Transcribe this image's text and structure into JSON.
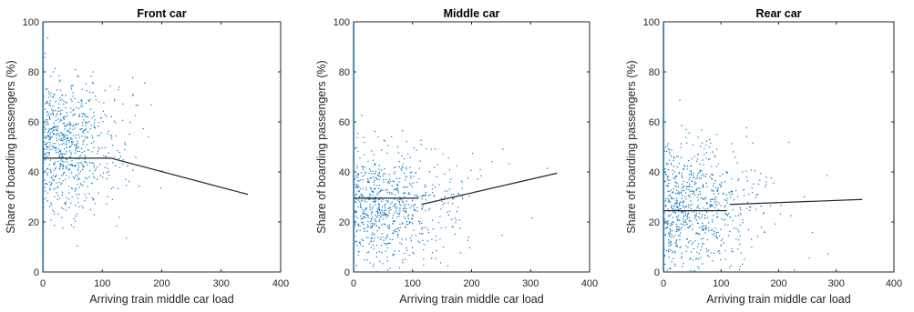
{
  "chart_data": [
    {
      "type": "scatter",
      "title": "Front car",
      "xlabel": "Arriving train middle car load",
      "ylabel": "Share of boarding passengers (%)",
      "xlim": [
        0,
        400
      ],
      "ylim": [
        0,
        100
      ],
      "xticks": [
        "0",
        "100",
        "200",
        "300",
        "400"
      ],
      "yticks": [
        "0",
        "20",
        "40",
        "60",
        "80",
        "100"
      ],
      "grid": false,
      "point_color": "#0072bd",
      "point_cloud": {
        "n": 750,
        "mean_y": 50,
        "sd_y": 14,
        "x_mode": 45,
        "x_max": 345
      },
      "fit_segments": [
        {
          "x": [
            0,
            115
          ],
          "y": [
            45.5,
            45.5
          ]
        },
        {
          "x": [
            115,
            345
          ],
          "y": [
            45.5,
            31
          ]
        }
      ]
    },
    {
      "type": "scatter",
      "title": "Middle car",
      "xlabel": "Arriving train middle car load",
      "ylabel": "Share of boarding passengers (%)",
      "xlim": [
        0,
        400
      ],
      "ylim": [
        0,
        100
      ],
      "xticks": [
        "0",
        "100",
        "200",
        "300",
        "400"
      ],
      "yticks": [
        "0",
        "20",
        "40",
        "60",
        "80",
        "100"
      ],
      "grid": false,
      "point_color": "#0072bd",
      "point_cloud": {
        "n": 750,
        "mean_y": 27,
        "sd_y": 11,
        "x_mode": 60,
        "x_max": 345
      },
      "fit_segments": [
        {
          "x": [
            0,
            110
          ],
          "y": [
            29.5,
            29.5
          ]
        },
        {
          "x": [
            115,
            345
          ],
          "y": [
            27,
            39.5
          ]
        }
      ]
    },
    {
      "type": "scatter",
      "title": "Rear car",
      "xlabel": "Arriving train middle car load",
      "ylabel": "Share of boarding passengers (%)",
      "xlim": [
        0,
        400
      ],
      "ylim": [
        0,
        100
      ],
      "xticks": [
        "0",
        "100",
        "200",
        "300",
        "400"
      ],
      "yticks": [
        "0",
        "20",
        "40",
        "60",
        "80",
        "100"
      ],
      "grid": false,
      "point_color": "#0072bd",
      "point_cloud": {
        "n": 750,
        "mean_y": 25,
        "sd_y": 13,
        "x_mode": 55,
        "x_max": 345
      },
      "fit_segments": [
        {
          "x": [
            0,
            110
          ],
          "y": [
            24.5,
            24.5
          ]
        },
        {
          "x": [
            115,
            345
          ],
          "y": [
            27,
            29
          ]
        }
      ]
    }
  ]
}
